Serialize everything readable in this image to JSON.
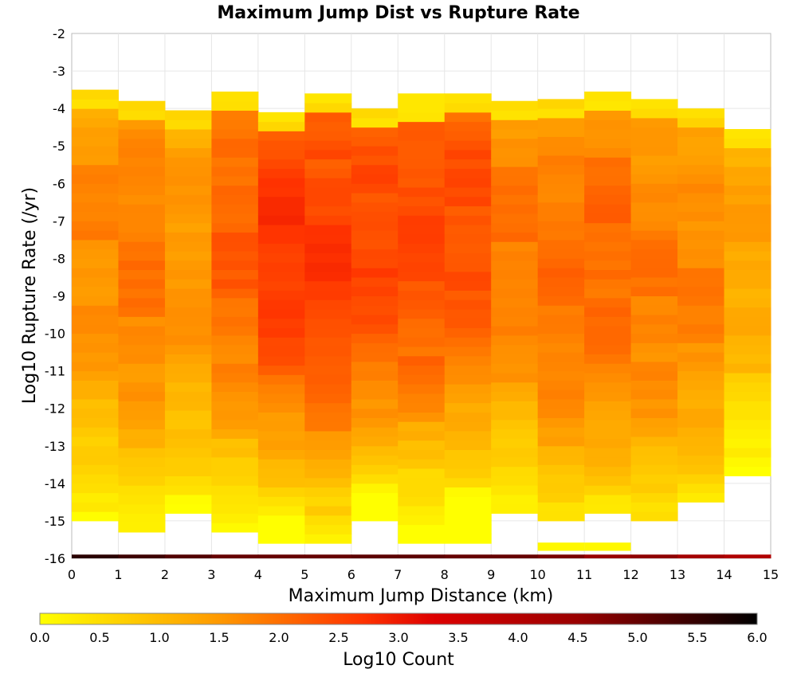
{
  "chart_data": {
    "type": "heatmap",
    "title": "Maximum Jump Dist vs Rupture Rate",
    "xlabel": "Maximum Jump Distance (km)",
    "ylabel": "Log10 Rupture Rate (/yr)",
    "xlim": [
      0,
      15
    ],
    "ylim": [
      -16,
      -2
    ],
    "x_ticks": [
      "0",
      "1",
      "2",
      "3",
      "4",
      "5",
      "6",
      "7",
      "8",
      "9",
      "10",
      "11",
      "12",
      "13",
      "14",
      "15"
    ],
    "y_ticks": [
      "-2",
      "-3",
      "-4",
      "-5",
      "-6",
      "-7",
      "-8",
      "-9",
      "-10",
      "-11",
      "-12",
      "-13",
      "-14",
      "-15",
      "-16"
    ],
    "grid": true,
    "x_bins": [
      0,
      1,
      2,
      3,
      4,
      5,
      6,
      7,
      8,
      9,
      10,
      11,
      12,
      13,
      14
    ],
    "bin_width": 1,
    "columns": [
      {
        "x": 0,
        "range": [
          -15.0,
          -3.6
        ],
        "peak": -7.5,
        "max": 1.8
      },
      {
        "x": 1,
        "range": [
          -15.3,
          -3.8
        ],
        "peak": -8.0,
        "max": 2.0
      },
      {
        "x": 2,
        "range": [
          -14.8,
          -4.1
        ],
        "peak": -8.0,
        "max": 1.7
      },
      {
        "x": 3,
        "range": [
          -15.3,
          -3.6
        ],
        "peak": -7.5,
        "max": 2.3
      },
      {
        "x": 4,
        "range": [
          -15.6,
          -4.1
        ],
        "peak": -7.5,
        "max": 2.8
      },
      {
        "x": 5,
        "range": [
          -15.6,
          -3.6
        ],
        "peak": -7.8,
        "max": 2.7
      },
      {
        "x": 6,
        "range": [
          -15.0,
          -4.1
        ],
        "peak": -7.5,
        "max": 2.6
      },
      {
        "x": 7,
        "range": [
          -15.6,
          -3.8
        ],
        "peak": -7.2,
        "max": 2.6
      },
      {
        "x": 8,
        "range": [
          -15.6,
          -3.6
        ],
        "peak": -6.8,
        "max": 2.5
      },
      {
        "x": 9,
        "range": [
          -14.8,
          -3.8
        ],
        "peak": -7.5,
        "max": 2.0
      },
      {
        "x": 10,
        "range": [
          -15.0,
          -3.8
        ],
        "peak": -8.5,
        "max": 2.1
      },
      {
        "x": 11,
        "range": [
          -14.8,
          -3.6
        ],
        "peak": -8.0,
        "max": 2.2
      },
      {
        "x": 12,
        "range": [
          -15.0,
          -3.8
        ],
        "peak": -8.5,
        "max": 2.0
      },
      {
        "x": 13,
        "range": [
          -14.5,
          -4.1
        ],
        "peak": -8.5,
        "max": 1.9
      },
      {
        "x": 14,
        "range": [
          -13.8,
          -4.7
        ],
        "peak": -7.5,
        "max": 1.5
      }
    ],
    "bottom_row": {
      "y": -15.9,
      "values": [
        5.6,
        5.4,
        5.2,
        5.0,
        5.0,
        5.0,
        5.1,
        5.1,
        5.0,
        5.0,
        4.8,
        4.5,
        4.6,
        4.3,
        4.1
      ]
    },
    "extra_cells": [
      {
        "x": 10,
        "y": -15.8,
        "value": 0.1
      },
      {
        "x": 11,
        "y": -15.8,
        "value": 0.1
      }
    ],
    "colorbar": {
      "label": "Log10 Count",
      "range": [
        0.0,
        6.0
      ],
      "ticks": [
        "0.0",
        "0.5",
        "1.0",
        "1.5",
        "2.0",
        "2.5",
        "3.0",
        "3.5",
        "4.0",
        "4.5",
        "5.0",
        "5.5",
        "6.0"
      ],
      "colors": [
        "#ffff00",
        "#ff9900",
        "#ff3300",
        "#dd0000",
        "#990000",
        "#000000"
      ]
    }
  }
}
